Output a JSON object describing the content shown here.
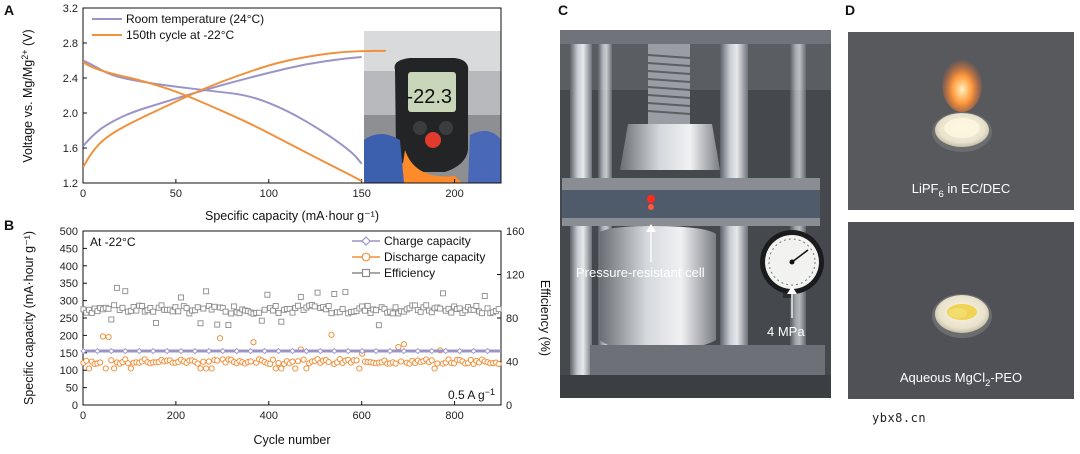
{
  "panels": {
    "a": "A",
    "b": "B",
    "c": "C",
    "d": "D"
  },
  "chart_data": [
    {
      "id": "A",
      "type": "line",
      "xlabel": "Specific capacity (mA·hour g⁻¹)",
      "ylabel_main": "Voltage vs. Mg/Mg",
      "ylabel_sup": "2+",
      "ylabel_unit": " (V)",
      "xlim": [
        0,
        225
      ],
      "ylim": [
        1.2,
        3.2
      ],
      "xticks": [
        0,
        50,
        100,
        150,
        200
      ],
      "yticks": [
        "1.2",
        "1.6",
        "2.0",
        "2.4",
        "2.8",
        "3.2"
      ],
      "series": [
        {
          "name": "Room temperature (24°C)",
          "color": "#9a94c8",
          "charge": [
            [
              0,
              1.62
            ],
            [
              5,
              1.74
            ],
            [
              12,
              1.86
            ],
            [
              25,
              2.0
            ],
            [
              40,
              2.1
            ],
            [
              60,
              2.23
            ],
            [
              80,
              2.35
            ],
            [
              100,
              2.46
            ],
            [
              120,
              2.56
            ],
            [
              140,
              2.62
            ],
            [
              150,
              2.64
            ]
          ],
          "discharge": [
            [
              0,
              2.6
            ],
            [
              5,
              2.55
            ],
            [
              15,
              2.43
            ],
            [
              30,
              2.36
            ],
            [
              50,
              2.3
            ],
            [
              70,
              2.25
            ],
            [
              90,
              2.2
            ],
            [
              110,
              2.03
            ],
            [
              130,
              1.78
            ],
            [
              145,
              1.55
            ],
            [
              150,
              1.42
            ]
          ]
        },
        {
          "name": "150th cycle at -22°C",
          "color": "#f0913c",
          "charge": [
            [
              0,
              1.38
            ],
            [
              5,
              1.56
            ],
            [
              12,
              1.72
            ],
            [
              25,
              1.88
            ],
            [
              45,
              2.08
            ],
            [
              65,
              2.28
            ],
            [
              85,
              2.44
            ],
            [
              105,
              2.58
            ],
            [
              125,
              2.66
            ],
            [
              140,
              2.7
            ],
            [
              155,
              2.71
            ],
            [
              163,
              2.71
            ]
          ],
          "discharge": [
            [
              0,
              2.58
            ],
            [
              5,
              2.52
            ],
            [
              15,
              2.45
            ],
            [
              30,
              2.38
            ],
            [
              50,
              2.25
            ],
            [
              70,
              2.07
            ],
            [
              90,
              1.88
            ],
            [
              110,
              1.66
            ],
            [
              130,
              1.44
            ],
            [
              145,
              1.28
            ],
            [
              150,
              1.22
            ]
          ]
        }
      ]
    },
    {
      "id": "B",
      "type": "scatter",
      "xlabel": "Cycle number",
      "ylabel_left": "Specific capacity (mA·hour g⁻¹)",
      "ylabel_right": "Efficiency (%)",
      "xlim": [
        0,
        900
      ],
      "ylim_left": [
        0,
        500
      ],
      "ylim_right": [
        0,
        160
      ],
      "xticks": [
        0,
        200,
        400,
        600,
        800
      ],
      "yticks_left": [
        0,
        50,
        100,
        150,
        200,
        250,
        300,
        350,
        400,
        450,
        500
      ],
      "yticks_right": [
        0,
        40,
        80,
        120,
        160
      ],
      "annotation_temp": "At -22°C",
      "annotation_rate": "0.5 A g",
      "annotation_rate_sup": "−1",
      "series": [
        {
          "name": "Charge capacity",
          "color": "#9a94c8",
          "marker": "diamond",
          "value_mAh_g": 155
        },
        {
          "name": "Discharge capacity",
          "color": "#f0913c",
          "marker": "circle",
          "mean_mAh_g": 125,
          "range_mAh_g": [
            105,
            205
          ]
        },
        {
          "name": "Efficiency",
          "color": "#8c8c8c",
          "marker": "square",
          "mean_percent": 88,
          "range_percent": [
            73,
            110
          ]
        }
      ]
    }
  ],
  "photos": {
    "thermometer_reading": "-22.3",
    "pressure_cell_label": "Pressure-resistant cell",
    "pressure_label": "4 MPa",
    "top_sample_main": "LiPF",
    "top_sample_sub": "6",
    "top_sample_rest": " in EC/DEC",
    "bottom_sample_main": "Aqueous MgCl",
    "bottom_sample_sub": "2",
    "bottom_sample_rest": "-PEO"
  },
  "watermark": "ybx8.cn"
}
